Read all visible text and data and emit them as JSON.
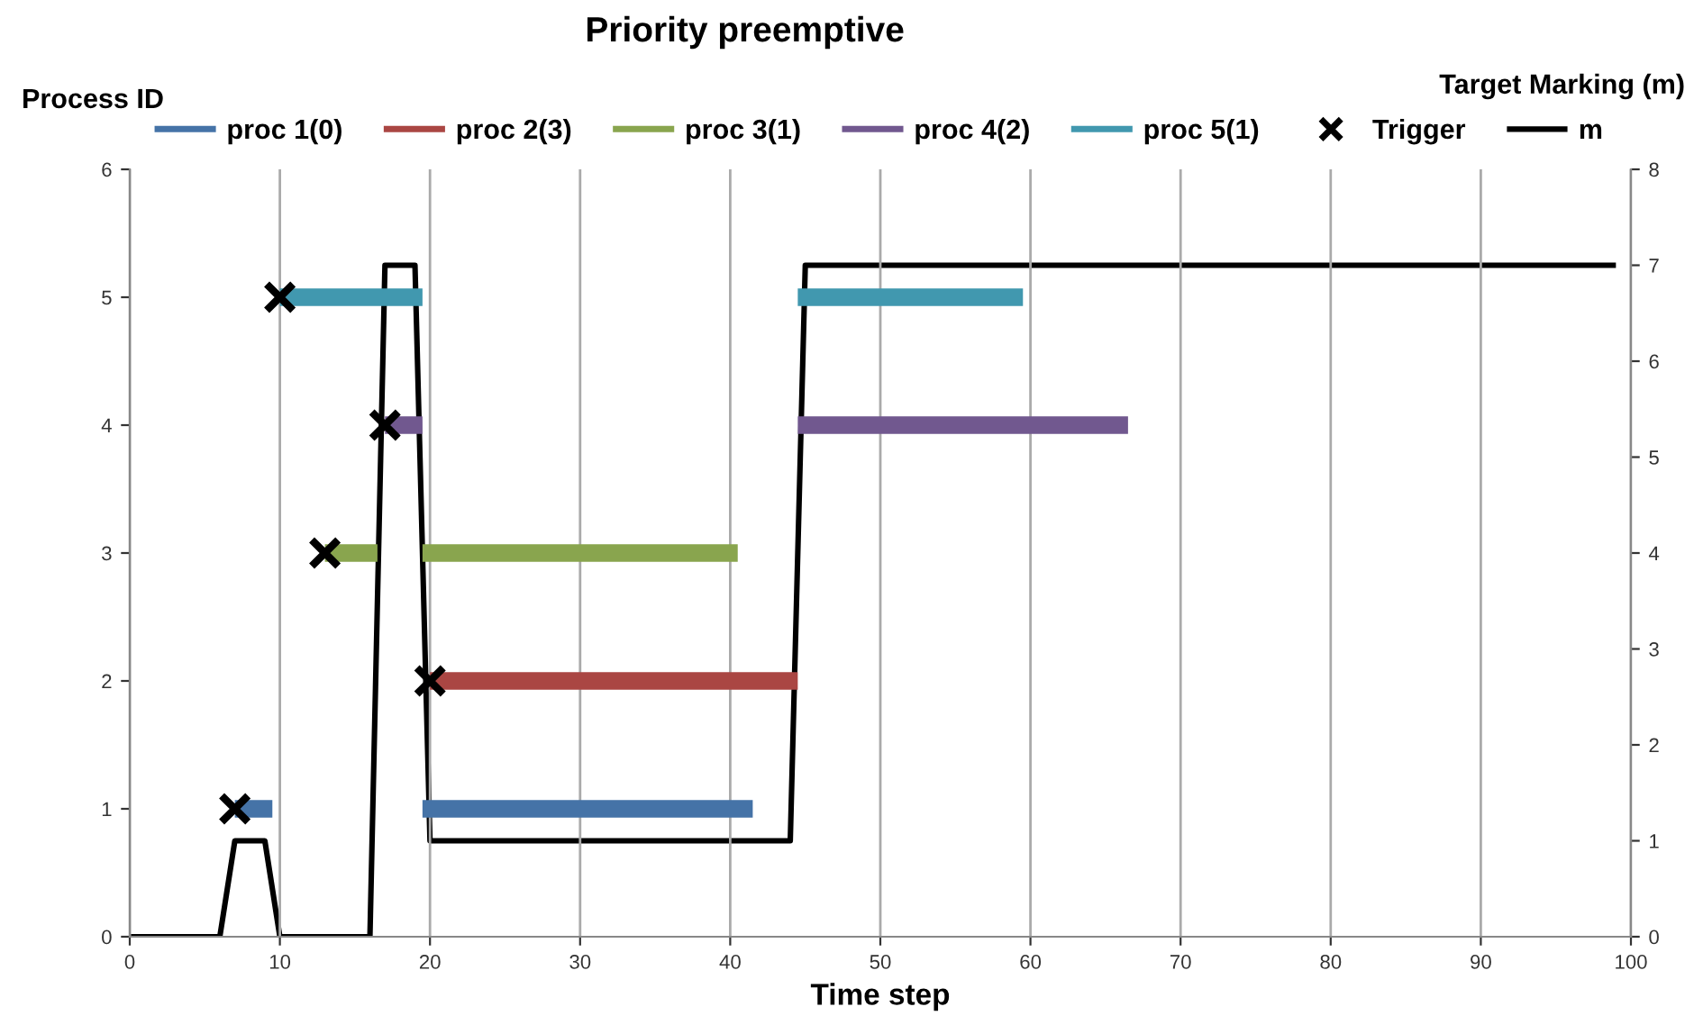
{
  "chart_data": {
    "type": "line",
    "title": "Priority preemptive",
    "xlabel": "Time step",
    "ylabel": "Process ID",
    "y2label": "Target Marking (m)",
    "xlim": [
      0,
      100
    ],
    "xticks": [
      0,
      10,
      20,
      30,
      40,
      50,
      60,
      70,
      80,
      90,
      100
    ],
    "ylim": [
      0,
      6
    ],
    "yticks": [
      0,
      1,
      2,
      3,
      4,
      5,
      6
    ],
    "y2lim": [
      0,
      8
    ],
    "y2ticks": [
      0,
      1,
      2,
      3,
      4,
      5,
      6,
      7,
      8
    ],
    "grid": "x",
    "legend": "top",
    "series": [
      {
        "name": "proc 1(0)",
        "color": "#4573a7",
        "x": [
          7,
          9.5,
          14,
          19.5,
          41.5
        ],
        "values": [
          1,
          1,
          null,
          1,
          1
        ]
      },
      {
        "name": "proc 2(3)",
        "color": "#aa4643",
        "x": [
          20,
          44.5
        ],
        "values": [
          2,
          2
        ]
      },
      {
        "name": "proc 3(1)",
        "color": "#89a54e",
        "x": [
          13,
          16.5,
          18,
          19.5,
          40.5
        ],
        "values": [
          3,
          3,
          null,
          3,
          3
        ]
      },
      {
        "name": "proc 4(2)",
        "color": "#71588f",
        "x": [
          17,
          19.5,
          30,
          44.5,
          66.5
        ],
        "values": [
          4,
          4,
          null,
          4,
          4
        ]
      },
      {
        "name": "proc 5(1)",
        "color": "#4198af",
        "x": [
          10,
          19.5,
          30,
          44.5,
          59.5
        ],
        "values": [
          5,
          5,
          null,
          5,
          5
        ]
      },
      {
        "name": "Trigger",
        "type": "scatter",
        "marker": "cross",
        "color": "#000000",
        "x": [
          7,
          10,
          13,
          17,
          20
        ],
        "values": [
          1,
          5,
          3,
          4,
          2
        ]
      },
      {
        "name": "m",
        "color": "#000000",
        "axis": "y2",
        "x": [
          0,
          6,
          7,
          9,
          10,
          16,
          17,
          19,
          20,
          44,
          45,
          99
        ],
        "values": [
          0,
          0,
          1,
          1,
          0,
          0,
          7,
          7,
          1,
          1,
          7,
          7
        ]
      }
    ]
  }
}
